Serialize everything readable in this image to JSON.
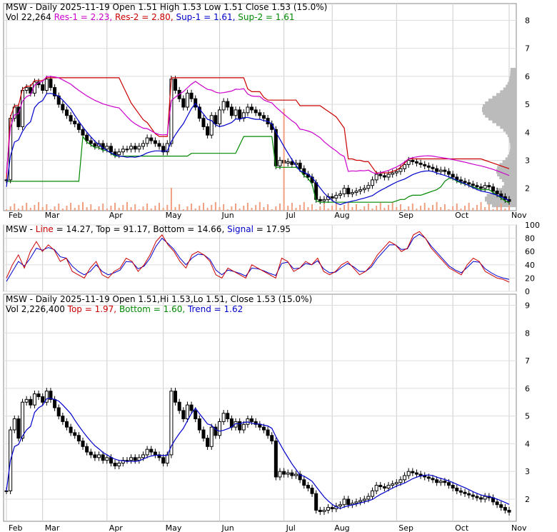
{
  "chart_data": [
    {
      "type": "candlestick",
      "title_parts": [
        {
          "text": "MSW - Daily 2025-11-19 Open 1.51  High 1.53  Low 1.51  Close 1.53 (15.0%)",
          "color": "#000000"
        }
      ],
      "legend_parts": [
        {
          "text": "Vol 22,264",
          "color": "#000000"
        },
        {
          "text": "Res-1 = 2.23,",
          "color": "#cc00cc"
        },
        {
          "text": "Res-2 = 2.80,",
          "color": "#cc0000"
        },
        {
          "text": "Sup-1 = 1.61,",
          "color": "#0000cc"
        },
        {
          "text": "Sup-2 = 1.61",
          "color": "#008800"
        }
      ],
      "ylim": [
        1.2,
        8.6
      ],
      "yticks": [
        "8",
        "7",
        "6",
        "5",
        "4",
        "3",
        "2"
      ],
      "close": [
        2.3,
        4.5,
        4.9,
        4.2,
        5.5,
        5.6,
        5.4,
        5.8,
        5.7,
        5.5,
        5.9,
        5.6,
        5.3,
        5.0,
        4.8,
        4.6,
        4.4,
        4.3,
        4.1,
        3.9,
        3.7,
        3.6,
        3.5,
        3.6,
        3.4,
        3.5,
        3.3,
        3.2,
        3.3,
        3.4,
        3.4,
        3.5,
        3.4,
        3.5,
        3.6,
        3.8,
        3.7,
        3.6,
        3.5,
        3.3,
        3.6,
        5.9,
        5.5,
        5.2,
        4.9,
        5.4,
        5.2,
        4.9,
        4.5,
        4.2,
        3.9,
        4.6,
        4.3,
        4.8,
        5.1,
        4.9,
        4.6,
        4.8,
        4.5,
        4.7,
        4.9,
        4.8,
        4.7,
        4.6,
        4.5,
        4.3,
        4.1,
        2.8,
        3.0,
        2.9,
        2.95,
        2.85,
        2.9,
        2.7,
        2.5,
        2.4,
        2.2,
        1.6,
        1.55,
        1.6,
        1.7,
        1.65,
        1.75,
        1.8,
        2.0,
        1.8,
        1.85,
        1.9,
        1.95,
        2.0,
        2.1,
        2.3,
        2.5,
        2.45,
        2.4,
        2.5,
        2.55,
        2.6,
        2.7,
        2.85,
        3.0,
        2.95,
        2.9,
        2.85,
        2.8,
        2.75,
        2.7,
        2.6,
        2.65,
        2.6,
        2.5,
        2.4,
        2.3,
        2.25,
        2.2,
        2.15,
        2.1,
        2.05,
        2.0,
        2.1,
        2.05,
        1.9,
        1.8,
        1.7,
        1.6,
        1.53
      ]
    },
    {
      "type": "line",
      "title_parts": [
        {
          "text": "MSW - ",
          "color": "#000000"
        },
        {
          "text": "Line",
          "color": "#cc0000"
        },
        {
          "text": " = 14.27,  Top = 91.17,  Bottom = 14.66,",
          "color": "#000000"
        },
        {
          "text": "Signal",
          "color": "#0000cc"
        },
        {
          "text": " = 17.95",
          "color": "#000000"
        }
      ],
      "ylim": [
        0,
        100
      ],
      "yticks": [
        "100",
        "80",
        "60",
        "40",
        "20",
        "0"
      ],
      "series": [
        {
          "name": "Line",
          "color": "#cc0000",
          "values": [
            20,
            40,
            55,
            35,
            60,
            75,
            60,
            70,
            62,
            45,
            50,
            30,
            25,
            20,
            35,
            45,
            25,
            20,
            30,
            35,
            50,
            45,
            30,
            40,
            55,
            75,
            85,
            70,
            60,
            45,
            35,
            55,
            60,
            55,
            45,
            25,
            20,
            35,
            30,
            25,
            20,
            40,
            35,
            30,
            25,
            20,
            50,
            45,
            30,
            35,
            45,
            40,
            50,
            30,
            25,
            30,
            40,
            45,
            35,
            25,
            30,
            40,
            55,
            65,
            75,
            70,
            60,
            65,
            85,
            90,
            80,
            65,
            55,
            45,
            35,
            30,
            25,
            40,
            50,
            45,
            30,
            25,
            20,
            18,
            14
          ]
        },
        {
          "name": "Signal",
          "color": "#0000cc",
          "values": [
            15,
            30,
            45,
            38,
            50,
            65,
            62,
            66,
            63,
            52,
            50,
            38,
            30,
            25,
            30,
            40,
            30,
            25,
            28,
            32,
            45,
            44,
            34,
            38,
            50,
            68,
            80,
            72,
            63,
            50,
            40,
            50,
            56,
            55,
            48,
            32,
            25,
            32,
            30,
            27,
            23,
            35,
            34,
            31,
            27,
            24,
            42,
            44,
            34,
            35,
            42,
            40,
            46,
            34,
            28,
            29,
            36,
            42,
            37,
            30,
            30,
            37,
            50,
            60,
            70,
            70,
            63,
            64,
            80,
            86,
            80,
            68,
            58,
            48,
            38,
            32,
            28,
            36,
            45,
            44,
            34,
            28,
            23,
            20,
            18
          ]
        }
      ]
    },
    {
      "type": "candlestick",
      "title_parts": [
        {
          "text": "MSW - Daily 2025-11-19 Open 1.51,Hi 1.53,Lo 1.51, Close 1.53 (15.0%)",
          "color": "#000000"
        }
      ],
      "legend_parts": [
        {
          "text": "Vol 2,226,400",
          "color": "#000000"
        },
        {
          "text": "Top = 1.97,",
          "color": "#cc0000"
        },
        {
          "text": "Bottom = 1.60,",
          "color": "#008800"
        },
        {
          "text": "Trend = 1.62",
          "color": "#0000cc"
        }
      ],
      "ylim": [
        1.2,
        9.4
      ],
      "yticks": [
        "9",
        "8",
        "7",
        "6",
        "5",
        "4",
        "3",
        "2"
      ]
    }
  ],
  "x_axis": {
    "months": [
      "Feb",
      "Mar",
      "Apr",
      "May",
      "Jun",
      "Jul",
      "Aug",
      "Sep",
      "Oct",
      "Nov"
    ]
  }
}
